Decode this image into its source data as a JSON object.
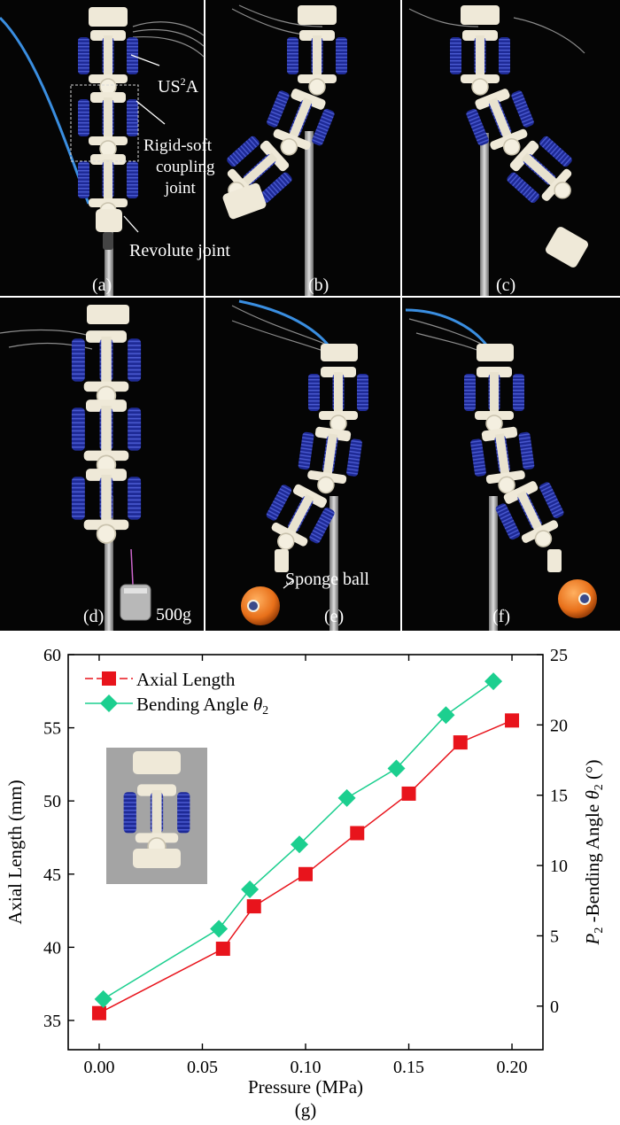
{
  "panels": [
    {
      "id": "a",
      "label": "(a)"
    },
    {
      "id": "b",
      "label": "(b)"
    },
    {
      "id": "c",
      "label": "(c)"
    },
    {
      "id": "d",
      "label": "(d)"
    },
    {
      "id": "e",
      "label": "(e)"
    },
    {
      "id": "f",
      "label": "(f)"
    }
  ],
  "annotations": {
    "us2a_prefix": "US",
    "us2a_sup": "2",
    "us2a_suffix": "A",
    "rigid_soft_line1": "Rigid-soft",
    "rigid_soft_line2": "coupling",
    "rigid_soft_line3": "joint",
    "revolute_joint": "Revolute joint",
    "weight": "500g",
    "sponge_ball": "Sponge ball"
  },
  "colors": {
    "actuator_blue": "#2a36a8",
    "skeleton_white": "#eeeadb",
    "ball_orange": "#e8781c",
    "tube_blue": "#3a8ee0",
    "axial_series": "#e8141c",
    "bending_series": "#1ccf8f"
  },
  "chart_data": {
    "type": "line",
    "caption": "(g)",
    "xlabel": "Pressure (MPa)",
    "ylabel": "Axial Length (mm)",
    "y2label_p": "P",
    "y2label_sub": "2",
    "y2label_mid": " -Bending Angle ",
    "y2label_theta": "θ",
    "y2label_theta_sub": "2",
    "y2label_unit": " (°)",
    "xlim": [
      -0.015,
      0.215
    ],
    "ylim": [
      33,
      60
    ],
    "y2lim": [
      -3.1,
      25
    ],
    "xticks": [
      "0.00",
      "0.05",
      "0.10",
      "0.15",
      "0.20"
    ],
    "yticks": [
      "35",
      "40",
      "45",
      "50",
      "55",
      "60"
    ],
    "y2ticks": [
      "0",
      "5",
      "10",
      "15",
      "20",
      "25"
    ],
    "legend_position": "top-left",
    "series": [
      {
        "name": "Axial Length",
        "axis": "left",
        "marker": "square",
        "x": [
          0.0,
          0.06,
          0.075,
          0.1,
          0.125,
          0.15,
          0.175,
          0.2
        ],
        "y": [
          35.5,
          39.9,
          42.8,
          45.0,
          47.8,
          50.5,
          54.0,
          55.5
        ]
      },
      {
        "name_main": "Bending Angle ",
        "name_theta": "θ",
        "name_sub": "2",
        "axis": "right",
        "marker": "diamond",
        "x": [
          0.002,
          0.058,
          0.073,
          0.097,
          0.12,
          0.144,
          0.168,
          0.191
        ],
        "y": [
          0.5,
          5.5,
          8.3,
          11.5,
          14.8,
          16.9,
          20.7,
          23.1
        ]
      }
    ]
  }
}
